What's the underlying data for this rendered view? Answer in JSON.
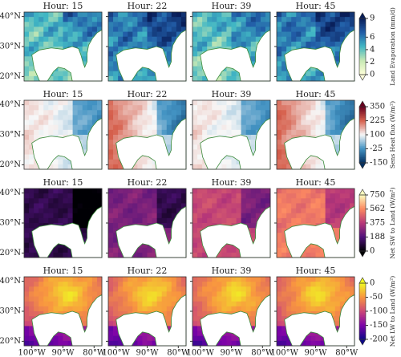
{
  "chart_data": [
    {
      "type": "map",
      "panels": [
        "Hour: 15",
        "Hour: 22",
        "Hour: 39",
        "Hour: 45"
      ],
      "colorbar_label": "Land Evaporation (mm/d)",
      "clim": [
        0,
        9
      ],
      "cticks": [
        0,
        2,
        4,
        6,
        9
      ],
      "colormap": [
        "#ffffd9",
        "#c7e9b4",
        "#41b6c4",
        "#225ea8",
        "#081d58"
      ],
      "ylim": [
        18.5,
        41.5
      ],
      "yticks": [
        {
          "value": 20,
          "label": "20°N"
        },
        {
          "value": 30,
          "label": "30°N"
        },
        {
          "value": 40,
          "label": "40°N"
        }
      ]
    },
    {
      "type": "map",
      "panels": [
        "Hour: 15",
        "Hour: 22",
        "Hour: 39",
        "Hour: 45"
      ],
      "colorbar_label": "Sens Heat flux (W/m²)",
      "clim": [
        -150,
        350
      ],
      "cticks": [
        -150,
        -25,
        100,
        225,
        350
      ],
      "colormap": [
        "#053061",
        "#4393c3",
        "#f7f7f7",
        "#d6604d",
        "#67001f"
      ],
      "ylim": [
        18.5,
        41.5
      ],
      "yticks": [
        {
          "value": 20,
          "label": "20°N"
        },
        {
          "value": 30,
          "label": "30°N"
        },
        {
          "value": 40,
          "label": "40°N"
        }
      ]
    },
    {
      "type": "map",
      "panels": [
        "Hour: 15",
        "Hour: 22",
        "Hour: 39",
        "Hour: 45"
      ],
      "colorbar_label": "Net SW to Land (W/m²)",
      "clim": [
        0,
        750
      ],
      "cticks": [
        0,
        188,
        375,
        562,
        750
      ],
      "colormap": [
        "#000004",
        "#51127c",
        "#b73779",
        "#fc8961",
        "#fcfdbf"
      ],
      "ylim": [
        18.5,
        41.5
      ],
      "yticks": [
        {
          "value": 20,
          "label": "20°N"
        },
        {
          "value": 30,
          "label": "30°N"
        },
        {
          "value": 40,
          "label": "40°N"
        }
      ]
    },
    {
      "type": "map",
      "panels": [
        "Hour: 15",
        "Hour: 22",
        "Hour: 39",
        "Hour: 45"
      ],
      "colorbar_label": "Net LW to Land (W/m²)",
      "clim": [
        -200,
        0
      ],
      "cticks": [
        -200,
        -150,
        -100,
        -50,
        0
      ],
      "colormap": [
        "#0d0887",
        "#7e03a8",
        "#cc4778",
        "#f89540",
        "#f0f921"
      ],
      "ylim": [
        18.5,
        41.5
      ],
      "yticks": [
        {
          "value": 20,
          "label": "20°N"
        },
        {
          "value": 30,
          "label": "30°N"
        },
        {
          "value": 40,
          "label": "40°N"
        }
      ],
      "xlim": [
        -102.5,
        -77.5
      ],
      "xticks": [
        {
          "value": -100,
          "label": "100°W"
        },
        {
          "value": -90,
          "label": "90°W"
        },
        {
          "value": -80,
          "label": "80°W"
        }
      ]
    }
  ]
}
